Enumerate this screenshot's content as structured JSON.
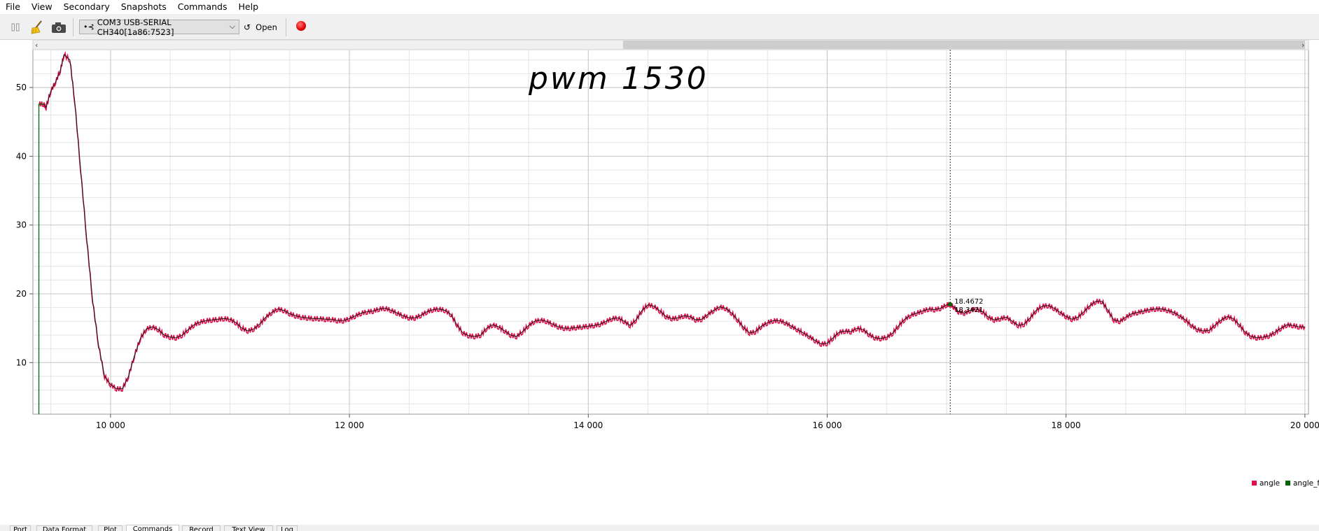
{
  "menu": [
    "File",
    "View",
    "Secondary",
    "Snapshots",
    "Commands",
    "Help"
  ],
  "toolbar": {
    "port_label": "COM3 USB-SERIAL CH340[1a86:7523]",
    "open_label": "Open"
  },
  "icons": [
    "pause-icon",
    "clear-broom-icon",
    "camera-icon",
    "usb-plug-icon",
    "chevron-down-icon",
    "refresh-icon",
    "record-icon",
    "scroll-left-icon",
    "scroll-right-icon"
  ],
  "colors": {
    "angle": "#e0104a",
    "angle_filtered": "#006400",
    "record": "#e00000"
  },
  "annotation": "pwm 1530",
  "cursor_readout": [
    "18.4672",
    "18.3421"
  ],
  "tabs": [
    "Port",
    "Data Format",
    "Plot",
    "Commands",
    "Record",
    "Text View",
    "Log"
  ],
  "chart_data": {
    "type": "line",
    "xlim": [
      9350,
      20030
    ],
    "ylim": [
      2.5,
      55.5
    ],
    "x_ticks": [
      10000,
      12000,
      14000,
      16000,
      18000,
      20000
    ],
    "x_tick_labels": [
      "10 000",
      "12 000",
      "14 000",
      "16 000",
      "18 000",
      "20 000"
    ],
    "y_ticks": [
      10,
      20,
      30,
      40,
      50
    ],
    "y_tick_labels": [
      "10",
      "20",
      "30",
      "40",
      "50"
    ],
    "grid": true,
    "legend_position": "bottom-right",
    "cursor_x": 17030,
    "series": [
      {
        "name": "angle",
        "points": [
          [
            9400,
            47.6
          ],
          [
            9440,
            47.6
          ],
          [
            9460,
            47.1
          ],
          [
            9500,
            49.5
          ],
          [
            9540,
            50.8
          ],
          [
            9580,
            52.5
          ],
          [
            9610,
            54.8
          ],
          [
            9660,
            54
          ],
          [
            9700,
            48
          ],
          [
            9750,
            38
          ],
          [
            9800,
            28
          ],
          [
            9850,
            19
          ],
          [
            9900,
            12.5
          ],
          [
            9950,
            8
          ],
          [
            10000,
            6.8
          ],
          [
            10050,
            6.2
          ],
          [
            10100,
            6.2
          ],
          [
            10150,
            8
          ],
          [
            10200,
            11
          ],
          [
            10250,
            13.5
          ],
          [
            10300,
            14.9
          ],
          [
            10350,
            15.2
          ],
          [
            10400,
            14.8
          ],
          [
            10450,
            14
          ],
          [
            10500,
            13.7
          ],
          [
            10550,
            13.6
          ],
          [
            10600,
            14
          ],
          [
            10650,
            14.8
          ],
          [
            10700,
            15.5
          ],
          [
            10750,
            15.9
          ],
          [
            10800,
            16.1
          ],
          [
            10850,
            16.2
          ],
          [
            10900,
            16.3
          ],
          [
            10950,
            16.4
          ],
          [
            11000,
            16.3
          ],
          [
            11050,
            15.8
          ],
          [
            11100,
            15
          ],
          [
            11150,
            14.6
          ],
          [
            11200,
            14.9
          ],
          [
            11250,
            15.6
          ],
          [
            11300,
            16.6
          ],
          [
            11350,
            17.3
          ],
          [
            11400,
            17.8
          ],
          [
            11450,
            17.6
          ],
          [
            11500,
            17.1
          ],
          [
            11550,
            16.8
          ],
          [
            11600,
            16.6
          ],
          [
            11650,
            16.5
          ],
          [
            11700,
            16.4
          ],
          [
            11750,
            16.4
          ],
          [
            11800,
            16.3
          ],
          [
            11850,
            16.3
          ],
          [
            11900,
            16.1
          ],
          [
            11950,
            16.1
          ],
          [
            12000,
            16.4
          ],
          [
            12050,
            16.8
          ],
          [
            12100,
            17.2
          ],
          [
            12150,
            17.4
          ],
          [
            12200,
            17.5
          ],
          [
            12250,
            17.8
          ],
          [
            12300,
            17.9
          ],
          [
            12350,
            17.6
          ],
          [
            12400,
            17.2
          ],
          [
            12450,
            16.8
          ],
          [
            12500,
            16.5
          ],
          [
            12550,
            16.5
          ],
          [
            12600,
            16.9
          ],
          [
            12650,
            17.4
          ],
          [
            12700,
            17.7
          ],
          [
            12750,
            17.8
          ],
          [
            12800,
            17.6
          ],
          [
            12850,
            17
          ],
          [
            12900,
            15.5
          ],
          [
            12950,
            14.3
          ],
          [
            13000,
            13.9
          ],
          [
            13050,
            13.8
          ],
          [
            13100,
            14
          ],
          [
            13150,
            15
          ],
          [
            13200,
            15.5
          ],
          [
            13250,
            15.2
          ],
          [
            13300,
            14.6
          ],
          [
            13350,
            14
          ],
          [
            13400,
            13.8
          ],
          [
            13450,
            14.5
          ],
          [
            13500,
            15.4
          ],
          [
            13550,
            16
          ],
          [
            13600,
            16.2
          ],
          [
            13650,
            16
          ],
          [
            13700,
            15.6
          ],
          [
            13750,
            15.2
          ],
          [
            13800,
            15
          ],
          [
            13850,
            15
          ],
          [
            13900,
            15.1
          ],
          [
            13950,
            15.2
          ],
          [
            14000,
            15.3
          ],
          [
            14050,
            15.4
          ],
          [
            14100,
            15.6
          ],
          [
            14150,
            16
          ],
          [
            14200,
            16.4
          ],
          [
            14250,
            16.5
          ],
          [
            14300,
            16
          ],
          [
            14350,
            15.4
          ],
          [
            14400,
            16.2
          ],
          [
            14450,
            17.6
          ],
          [
            14500,
            18.4
          ],
          [
            14550,
            18.2
          ],
          [
            14600,
            17.5
          ],
          [
            14650,
            16.7
          ],
          [
            14700,
            16.4
          ],
          [
            14750,
            16.5
          ],
          [
            14800,
            16.8
          ],
          [
            14850,
            16.7
          ],
          [
            14900,
            16.2
          ],
          [
            14950,
            16.3
          ],
          [
            15000,
            17
          ],
          [
            15050,
            17.6
          ],
          [
            15100,
            18.1
          ],
          [
            15150,
            17.9
          ],
          [
            15200,
            17.2
          ],
          [
            15250,
            16.2
          ],
          [
            15300,
            15.1
          ],
          [
            15350,
            14.3
          ],
          [
            15400,
            14.5
          ],
          [
            15450,
            15.3
          ],
          [
            15500,
            15.8
          ],
          [
            15550,
            16.1
          ],
          [
            15600,
            16.1
          ],
          [
            15650,
            15.8
          ],
          [
            15700,
            15.3
          ],
          [
            15750,
            14.8
          ],
          [
            15800,
            14.3
          ],
          [
            15850,
            13.8
          ],
          [
            15900,
            13.2
          ],
          [
            15950,
            12.7
          ],
          [
            16000,
            12.8
          ],
          [
            16050,
            13.6
          ],
          [
            16100,
            14.4
          ],
          [
            16150,
            14.6
          ],
          [
            16200,
            14.5
          ],
          [
            16250,
            15
          ],
          [
            16300,
            14.8
          ],
          [
            16350,
            14.1
          ],
          [
            16400,
            13.6
          ],
          [
            16450,
            13.5
          ],
          [
            16500,
            13.7
          ],
          [
            16550,
            14.3
          ],
          [
            16600,
            15.4
          ],
          [
            16650,
            16.3
          ],
          [
            16700,
            16.9
          ],
          [
            16750,
            17.2
          ],
          [
            16800,
            17.5
          ],
          [
            16850,
            17.8
          ],
          [
            16900,
            17.7
          ],
          [
            16950,
            17.9
          ],
          [
            17000,
            18.4
          ],
          [
            17030,
            18.5
          ],
          [
            17060,
            18.1
          ],
          [
            17100,
            17.4
          ],
          [
            17150,
            17.2
          ],
          [
            17200,
            17.6
          ],
          [
            17250,
            17.8
          ],
          [
            17300,
            17.4
          ],
          [
            17350,
            16.6
          ],
          [
            17400,
            16.2
          ],
          [
            17450,
            16.4
          ],
          [
            17500,
            16.6
          ],
          [
            17550,
            16
          ],
          [
            17600,
            15.4
          ],
          [
            17650,
            15.6
          ],
          [
            17700,
            16.5
          ],
          [
            17750,
            17.6
          ],
          [
            17800,
            18.2
          ],
          [
            17850,
            18.3
          ],
          [
            17900,
            17.9
          ],
          [
            17950,
            17.3
          ],
          [
            18000,
            16.7
          ],
          [
            18050,
            16.3
          ],
          [
            18100,
            16.6
          ],
          [
            18150,
            17.4
          ],
          [
            18200,
            18.3
          ],
          [
            18250,
            18.9
          ],
          [
            18300,
            18.9
          ],
          [
            18350,
            17.6
          ],
          [
            18400,
            16.2
          ],
          [
            18450,
            16
          ],
          [
            18500,
            16.6
          ],
          [
            18550,
            17.1
          ],
          [
            18600,
            17.3
          ],
          [
            18650,
            17.5
          ],
          [
            18700,
            17.7
          ],
          [
            18750,
            17.8
          ],
          [
            18800,
            17.8
          ],
          [
            18850,
            17.6
          ],
          [
            18900,
            17.3
          ],
          [
            18950,
            16.8
          ],
          [
            19000,
            16.2
          ],
          [
            19050,
            15.4
          ],
          [
            19100,
            14.8
          ],
          [
            19150,
            14.6
          ],
          [
            19200,
            14.7
          ],
          [
            19250,
            15.5
          ],
          [
            19300,
            16.2
          ],
          [
            19350,
            16.7
          ],
          [
            19400,
            16.4
          ],
          [
            19450,
            15.5
          ],
          [
            19500,
            14.4
          ],
          [
            19550,
            13.8
          ],
          [
            19600,
            13.6
          ],
          [
            19650,
            13.7
          ],
          [
            19700,
            13.9
          ],
          [
            19750,
            14.4
          ],
          [
            19800,
            15
          ],
          [
            19850,
            15.5
          ],
          [
            19900,
            15.4
          ],
          [
            19950,
            15.2
          ],
          [
            20000,
            15.2
          ]
        ]
      },
      {
        "name": "angle_filtered",
        "points": [
          [
            9400,
            2.5
          ],
          [
            9400,
            47.6
          ]
        ]
      }
    ]
  }
}
